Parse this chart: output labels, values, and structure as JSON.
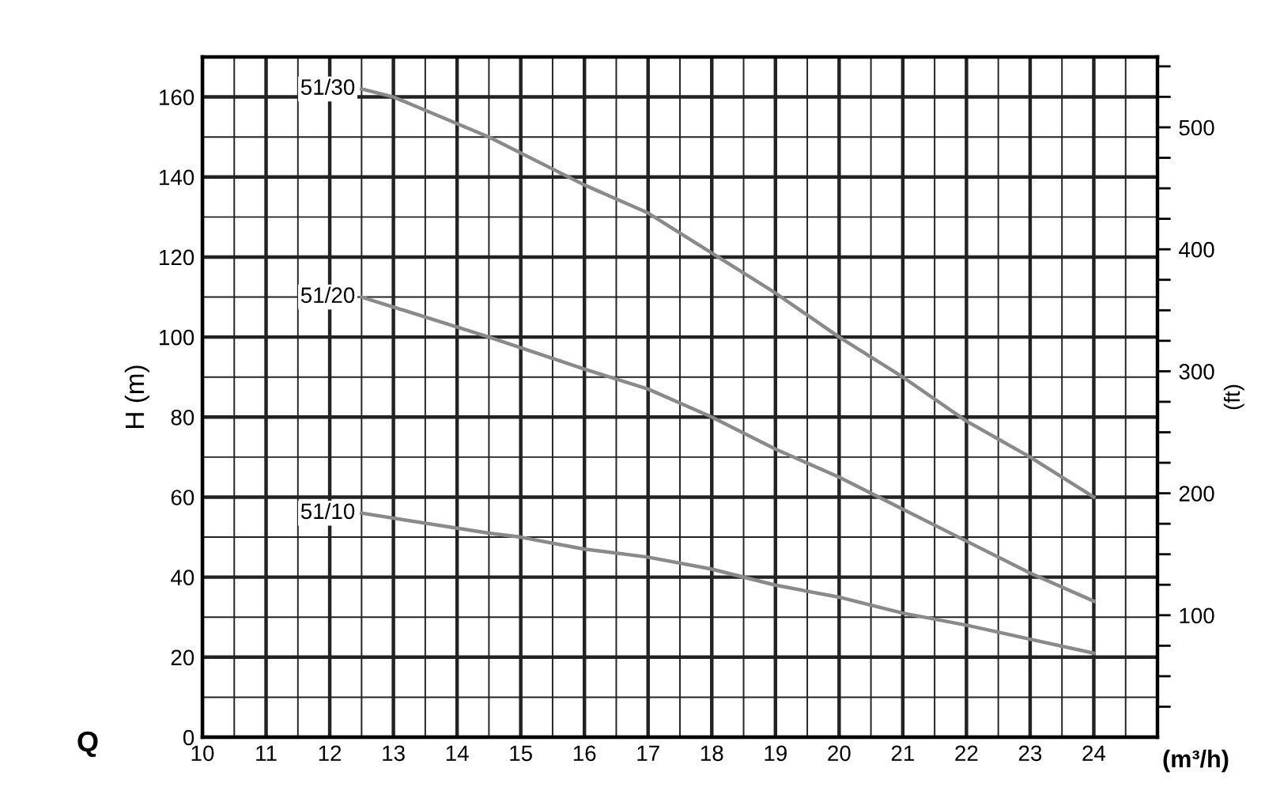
{
  "chart_data": {
    "type": "line",
    "xlabel": "(m³/h)",
    "ylabel": "H (m)",
    "y2label": "(ft)",
    "annotations": [
      "Q"
    ],
    "series": [
      {
        "name": "51/30",
        "color": "#8a8a8a",
        "x": [
          12.5,
          13,
          14.5,
          16,
          17,
          18,
          19,
          20,
          21,
          22,
          23,
          24
        ],
        "values": [
          162,
          160,
          150,
          138,
          131,
          121,
          111,
          100,
          90,
          79,
          70,
          60
        ]
      },
      {
        "name": "51/20",
        "color": "#8a8a8a",
        "x": [
          12.5,
          14.5,
          16,
          17,
          18,
          19,
          20,
          21,
          22,
          23,
          24
        ],
        "values": [
          110,
          100,
          92,
          87,
          80,
          72,
          65,
          57,
          49,
          41,
          34
        ]
      },
      {
        "name": "51/10",
        "color": "#8a8a8a",
        "x": [
          12.5,
          14.5,
          15,
          16,
          17,
          18,
          19,
          20,
          21,
          22,
          23,
          24
        ],
        "values": [
          56,
          51,
          50,
          47,
          45,
          42,
          38,
          35,
          31,
          28,
          24.5,
          21
        ]
      }
    ],
    "xlim": [
      10,
      25
    ],
    "xticks": [
      10,
      {
        "value": 10.5,
        "label": null
      },
      11,
      {
        "value": 11.5,
        "label": null
      },
      12,
      {
        "value": 12.5,
        "label": null
      },
      13,
      {
        "value": 13.5,
        "label": null
      },
      14,
      {
        "value": 14.5,
        "label": null
      },
      15,
      {
        "value": 15.5,
        "label": null
      },
      16,
      {
        "value": 16.5,
        "label": null
      },
      17,
      {
        "value": 17.5,
        "label": null
      },
      18,
      {
        "value": 18.5,
        "label": null
      },
      19,
      {
        "value": 19.5,
        "label": null
      },
      20,
      {
        "value": 20.5,
        "label": null
      },
      21,
      {
        "value": 21.5,
        "label": null
      },
      22,
      {
        "value": 22.5,
        "label": null
      },
      23,
      {
        "value": 23.5,
        "label": null
      },
      24,
      {
        "value": 24.5,
        "label": null
      }
    ],
    "ylim": [
      0,
      170
    ],
    "yticks": [
      0,
      {
        "value": 10,
        "label": null
      },
      20,
      {
        "value": 30,
        "label": null
      },
      40,
      {
        "value": 50,
        "label": null
      },
      60,
      {
        "value": 70,
        "label": null
      },
      80,
      {
        "value": 90,
        "label": null
      },
      100,
      {
        "value": 110,
        "label": null
      },
      120,
      {
        "value": 130,
        "label": null
      },
      140,
      {
        "value": 150,
        "label": null
      },
      160
    ],
    "y2lim": [
      0,
      557.7
    ],
    "y2ticks": [
      {
        "value": 25,
        "label": null
      },
      {
        "value": 50,
        "label": null
      },
      {
        "value": 75,
        "label": null
      },
      100,
      {
        "value": 125,
        "label": null
      },
      {
        "value": 150,
        "label": null
      },
      {
        "value": 175,
        "label": null
      },
      200,
      {
        "value": 225,
        "label": null
      },
      {
        "value": 250,
        "label": null
      },
      {
        "value": 275,
        "label": null
      },
      300,
      {
        "value": 325,
        "label": null
      },
      {
        "value": 350,
        "label": null
      },
      {
        "value": 375,
        "label": null
      },
      400,
      {
        "value": 425,
        "label": null
      },
      {
        "value": 450,
        "label": null
      },
      {
        "value": 475,
        "label": null
      },
      500,
      {
        "value": 525,
        "label": null
      },
      {
        "value": 550,
        "label": null
      }
    ],
    "grid": true,
    "legend": false,
    "marker": "none",
    "line_style": "solid"
  }
}
